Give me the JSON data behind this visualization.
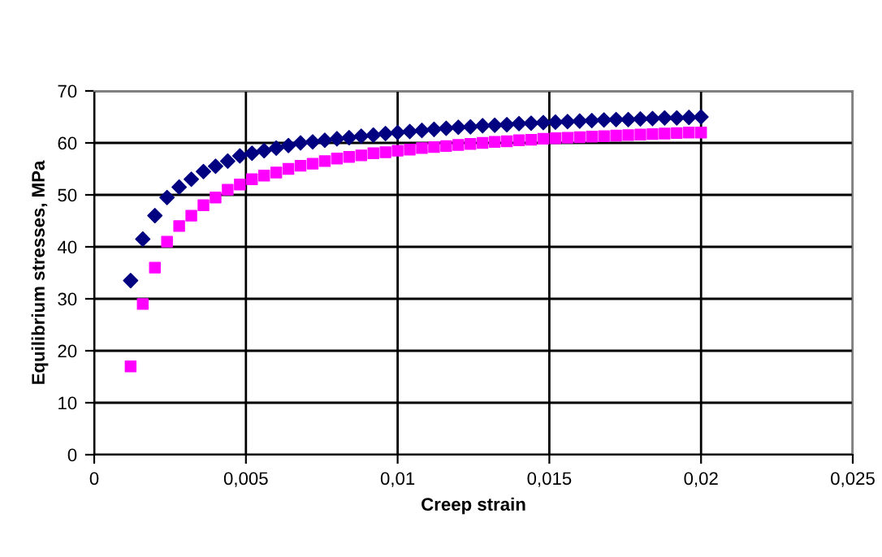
{
  "chart_data": {
    "type": "scatter",
    "xlabel": "Creep strain",
    "ylabel": "Equilibrium stresses, MPa",
    "x": [
      0.0012,
      0.0016,
      0.002,
      0.0024,
      0.0028,
      0.0032,
      0.0036,
      0.004,
      0.0044,
      0.0048,
      0.0052,
      0.0056,
      0.006,
      0.0064,
      0.0068,
      0.0072,
      0.0076,
      0.008,
      0.0084,
      0.0088,
      0.0092,
      0.0096,
      0.01,
      0.0104,
      0.0108,
      0.0112,
      0.0116,
      0.012,
      0.0124,
      0.0128,
      0.0132,
      0.0136,
      0.014,
      0.0144,
      0.0148,
      0.0152,
      0.0156,
      0.016,
      0.0164,
      0.0168,
      0.0172,
      0.0176,
      0.018,
      0.0184,
      0.0188,
      0.0192,
      0.0196,
      0.02
    ],
    "series": [
      {
        "color": "#000080",
        "marker": "diamond",
        "values": [
          33.5,
          41.5,
          46,
          49.5,
          51.5,
          53,
          54.5,
          55.5,
          56.5,
          57.5,
          58,
          58.5,
          59,
          59.5,
          60,
          60.2,
          60.5,
          60.8,
          61,
          61.3,
          61.5,
          61.8,
          62,
          62.2,
          62.4,
          62.6,
          62.8,
          63,
          63.1,
          63.3,
          63.4,
          63.5,
          63.7,
          63.8,
          63.9,
          64,
          64.1,
          64.2,
          64.3,
          64.4,
          64.5,
          64.5,
          64.6,
          64.7,
          64.8,
          64.8,
          64.9,
          65
        ]
      },
      {
        "color": "#ff00ff",
        "marker": "square",
        "values": [
          17,
          29,
          36,
          41,
          44,
          46,
          48,
          49.5,
          51,
          52,
          53,
          53.7,
          54.3,
          55,
          55.6,
          56,
          56.5,
          57,
          57.3,
          57.6,
          58,
          58.2,
          58.5,
          58.7,
          59,
          59.2,
          59.4,
          59.6,
          59.8,
          60,
          60.2,
          60.3,
          60.5,
          60.6,
          60.8,
          60.9,
          61,
          61.1,
          61.2,
          61.3,
          61.4,
          61.5,
          61.6,
          61.7,
          61.8,
          61.9,
          62,
          62
        ]
      }
    ],
    "xlim": [
      0,
      0.025
    ],
    "xticks": [
      0,
      {
        "value": 0.005,
        "label": "0,005"
      },
      {
        "value": 0.01,
        "label": "0,01"
      },
      {
        "value": 0.015,
        "label": "0,015"
      },
      {
        "value": 0.02,
        "label": "0,02"
      },
      {
        "value": 0.025,
        "label": "0,025"
      }
    ],
    "ylim": [
      0,
      70
    ],
    "yticks": [
      0,
      10,
      20,
      30,
      40,
      50,
      60,
      70
    ],
    "grid": true
  }
}
